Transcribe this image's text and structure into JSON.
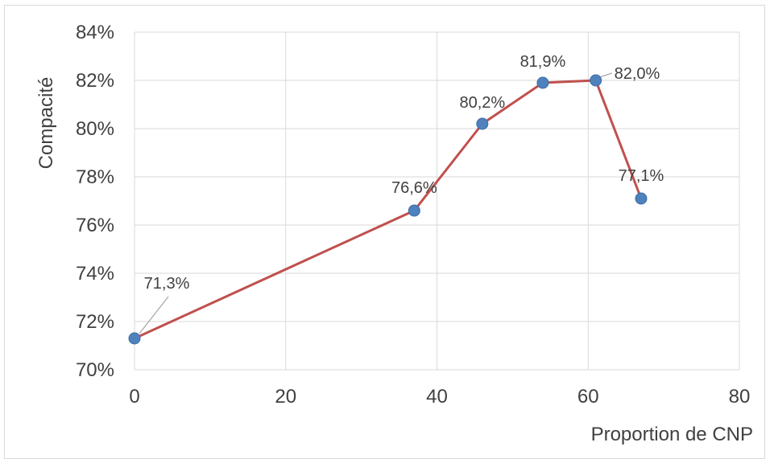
{
  "chart_data": {
    "type": "line",
    "xlabel": "Proportion de CNP",
    "ylabel": "Compacité",
    "xlim": [
      0,
      80
    ],
    "ylim": [
      70,
      84
    ],
    "x_ticks": [
      0,
      20,
      40,
      60,
      80
    ],
    "x_tick_labels": [
      "0",
      "20",
      "40",
      "60",
      "80"
    ],
    "y_ticks": [
      70,
      72,
      74,
      76,
      78,
      80,
      82,
      84
    ],
    "y_tick_labels": [
      "70%",
      "72%",
      "74%",
      "76%",
      "78%",
      "80%",
      "82%",
      "84%"
    ],
    "grid": true,
    "line_color": "#c0504d",
    "marker_color": "#4f81bd",
    "gridline_color": "#d9d9d9",
    "series": [
      {
        "x": [
          0,
          37,
          46,
          54,
          61,
          67
        ],
        "y": [
          71.3,
          76.6,
          80.2,
          81.9,
          82.0,
          77.1
        ],
        "labels": [
          "71,3%",
          "76,6%",
          "80,2%",
          "81,9%",
          "82,0%",
          "77,1%"
        ]
      }
    ]
  }
}
